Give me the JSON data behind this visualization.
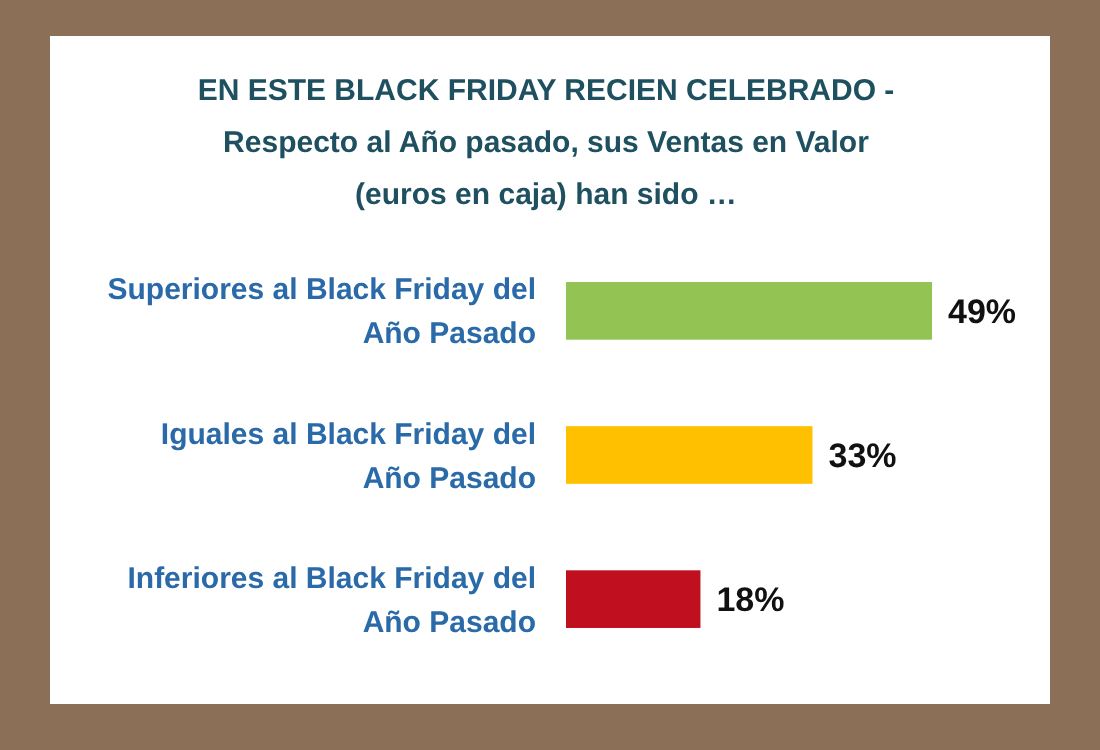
{
  "chart_data": {
    "type": "bar",
    "orientation": "horizontal",
    "title": "EN ESTE BLACK FRIDAY RECIEN CELEBRADO -\nRespecto al Año pasado, sus Ventas en Valor\n(euros en caja) han sido …",
    "categories": [
      "Superiores al Black Friday del Año Pasado",
      "Iguales al Black Friday del Año Pasado",
      "Inferiores al Black Friday del Año Pasado"
    ],
    "values": [
      49,
      33,
      18
    ],
    "colors": [
      "#92c353",
      "#ffc000",
      "#c00f1e"
    ],
    "value_labels": [
      "49%",
      "33%",
      "18%"
    ]
  }
}
